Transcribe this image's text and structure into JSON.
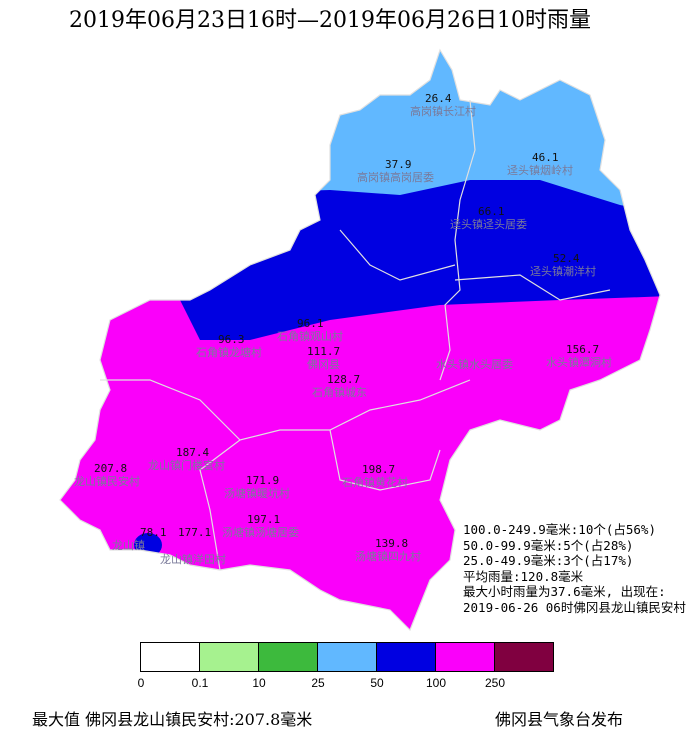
{
  "title": "2019年06月23日16时—2019年06月26日10时雨量",
  "stations": [
    {
      "value": "26.4",
      "name": "高岗镇长江村"
    },
    {
      "value": "37.9",
      "name": "高岗镇高岗居委"
    },
    {
      "value": "46.1",
      "name": "迳头镇烟岭村"
    },
    {
      "value": "66.1",
      "name": "迳头镇迳头居委"
    },
    {
      "value": "52.4",
      "name": "迳头镇潮洋村"
    },
    {
      "value": "96.3",
      "name": "石角镇龙塘村"
    },
    {
      "value": "96.1",
      "name": "石角镇观山村"
    },
    {
      "value": "111.7",
      "name": "佛冈县"
    },
    {
      "value": "128.7",
      "name": "石角镇城东"
    },
    {
      "value": "",
      "name": "水头镇水头居委"
    },
    {
      "value": "156.7",
      "name": "水头镇潭洞村"
    },
    {
      "value": "187.4",
      "name": "龙山镇门楼宫村"
    },
    {
      "value": "207.8",
      "name": "龙山镇民安村"
    },
    {
      "value": "171.9",
      "name": "汤塘镇暖坑村"
    },
    {
      "value": "198.7",
      "name": "石角镇黄花村"
    },
    {
      "value": "78.1",
      "name": "龙山镇"
    },
    {
      "value": "177.1",
      "name": "龙山镇洋田村"
    },
    {
      "value": "197.1",
      "name": "汤塘镇汤塘居委"
    },
    {
      "value": "139.8",
      "name": "汤塘镇四九村"
    }
  ],
  "stats": [
    "100.0-249.9毫米:10个(占56%)",
    "50.0-99.9毫米:5个(占28%)",
    "25.0-49.9毫米:3个(占17%)",
    "平均雨量:120.8毫米",
    "最大小时雨量为37.6毫米, 出现在:",
    "2019-06-26 06时佛冈县龙山镇民安村"
  ],
  "legend": {
    "colors": [
      "#ffffff",
      "#a6f28f",
      "#3dba3d",
      "#61b8ff",
      "#0000e1",
      "#fa00fa",
      "#800040"
    ],
    "ticks": [
      "0",
      "0.1",
      "10",
      "25",
      "50",
      "100",
      "250"
    ]
  },
  "footer": {
    "max": "最大值 佛冈县龙山镇民安村:207.8毫米",
    "publisher": "佛冈县气象台发布"
  }
}
